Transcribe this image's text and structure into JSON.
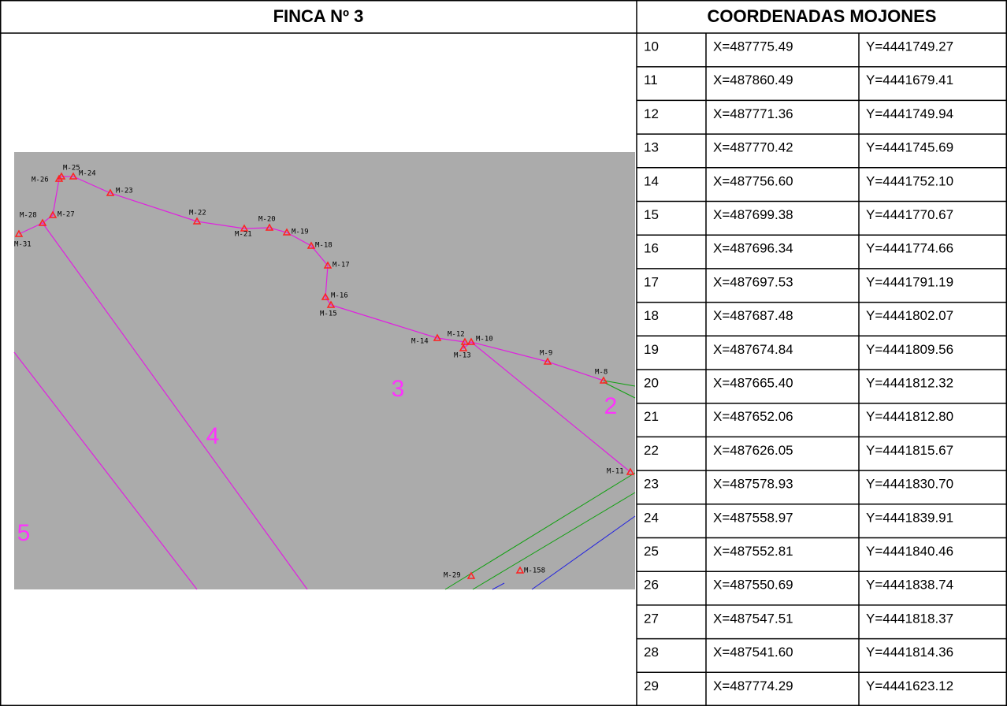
{
  "left": {
    "title": "FINCA Nº 3",
    "map": {
      "markers": [
        "M-31",
        "M-28",
        "M-27",
        "M-26",
        "M-25",
        "M-24",
        "M-23",
        "M-22",
        "M-21",
        "M-20",
        "M-19",
        "M-18",
        "M-17",
        "M-16",
        "M-15",
        "M-14",
        "M-12",
        "M-13",
        "M-10",
        "M-9",
        "M-8",
        "M-11",
        "M-29",
        "M-158"
      ],
      "regions": [
        "3",
        "2",
        "4",
        "5"
      ]
    }
  },
  "table": {
    "title": "COORDENADAS MOJONES",
    "rows": [
      [
        "10",
        "X=487775.49",
        "Y=4441749.27"
      ],
      [
        "11",
        "X=487860.49",
        "Y=4441679.41"
      ],
      [
        "12",
        "X=487771.36",
        "Y=4441749.94"
      ],
      [
        "13",
        "X=487770.42",
        "Y=4441745.69"
      ],
      [
        "14",
        "X=487756.60",
        "Y=4441752.10"
      ],
      [
        "15",
        "X=487699.38",
        "Y=4441770.67"
      ],
      [
        "16",
        "X=487696.34",
        "Y=4441774.66"
      ],
      [
        "17",
        "X=487697.53",
        "Y=4441791.19"
      ],
      [
        "18",
        "X=487687.48",
        "Y=4441802.07"
      ],
      [
        "19",
        "X=487674.84",
        "Y=4441809.56"
      ],
      [
        "20",
        "X=487665.40",
        "Y=4441812.32"
      ],
      [
        "21",
        "X=487652.06",
        "Y=4441812.80"
      ],
      [
        "22",
        "X=487626.05",
        "Y=4441815.67"
      ],
      [
        "23",
        "X=487578.93",
        "Y=4441830.70"
      ],
      [
        "24",
        "X=487558.97",
        "Y=4441839.91"
      ],
      [
        "25",
        "X=487552.81",
        "Y=4441840.46"
      ],
      [
        "26",
        "X=487550.69",
        "Y=4441838.74"
      ],
      [
        "27",
        "X=487547.51",
        "Y=4441818.37"
      ],
      [
        "28",
        "X=487541.60",
        "Y=4441814.36"
      ],
      [
        "29",
        "X=487774.29",
        "Y=4441623.12"
      ]
    ]
  }
}
